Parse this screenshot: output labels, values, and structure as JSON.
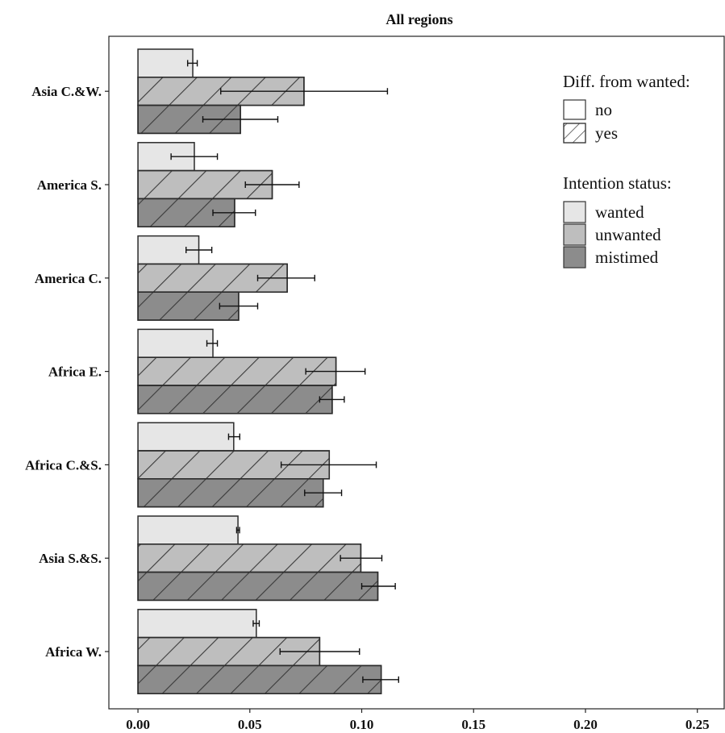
{
  "chart_data": {
    "type": "bar",
    "orientation": "horizontal",
    "title": "All regions",
    "xlabel": "",
    "ylabel": "",
    "xlim": [
      -0.013,
      0.262
    ],
    "x_ticks": [
      0.0,
      0.05,
      0.1,
      0.15,
      0.2,
      0.25
    ],
    "x_tick_labels": [
      "0.00",
      "0.05",
      "0.10",
      "0.15",
      "0.20",
      "0.25"
    ],
    "grid": false,
    "legend_position": "top-right",
    "categories": [
      "Asia C.&W.",
      "America S.",
      "America C.",
      "Africa E.",
      "Africa C.&S.",
      "Asia S.&S.",
      "Africa W."
    ],
    "series": [
      {
        "name": "wanted",
        "fill": "#e6e6e6",
        "hatched": false,
        "values": [
          0.0245,
          0.0252,
          0.0272,
          0.0335,
          0.0428,
          0.0447,
          0.0529
        ],
        "ci_low": [
          0.0222,
          0.0148,
          0.0215,
          0.0308,
          0.0405,
          0.0441,
          0.0515
        ],
        "ci_high": [
          0.0265,
          0.0355,
          0.033,
          0.0355,
          0.0455,
          0.0454,
          0.0542
        ]
      },
      {
        "name": "unwanted",
        "fill": "#bebebe",
        "hatched": true,
        "values": [
          0.0742,
          0.06,
          0.0667,
          0.0885,
          0.0855,
          0.0996,
          0.0812
        ],
        "ci_low": [
          0.037,
          0.048,
          0.0535,
          0.075,
          0.064,
          0.0905,
          0.0635
        ],
        "ci_high": [
          0.1115,
          0.072,
          0.079,
          0.1015,
          0.1065,
          0.109,
          0.099
        ]
      },
      {
        "name": "mistimed",
        "fill": "#8c8c8c",
        "hatched": true,
        "values": [
          0.0458,
          0.0432,
          0.045,
          0.0868,
          0.0828,
          0.1072,
          0.1087
        ],
        "ci_low": [
          0.029,
          0.0335,
          0.0365,
          0.0812,
          0.0745,
          0.1,
          0.1005
        ],
        "ci_high": [
          0.0625,
          0.0525,
          0.0535,
          0.0922,
          0.091,
          0.115,
          0.1165
        ]
      }
    ],
    "legend": {
      "diff_title": "Diff. from wanted:",
      "diff_items": [
        {
          "label": "no",
          "hatched": false
        },
        {
          "label": "yes",
          "hatched": true
        }
      ],
      "status_title": "Intention status:",
      "status_items": [
        {
          "label": "wanted",
          "fill": "#e6e6e6"
        },
        {
          "label": "unwanted",
          "fill": "#bebebe"
        },
        {
          "label": "mistimed",
          "fill": "#8c8c8c"
        }
      ]
    }
  }
}
